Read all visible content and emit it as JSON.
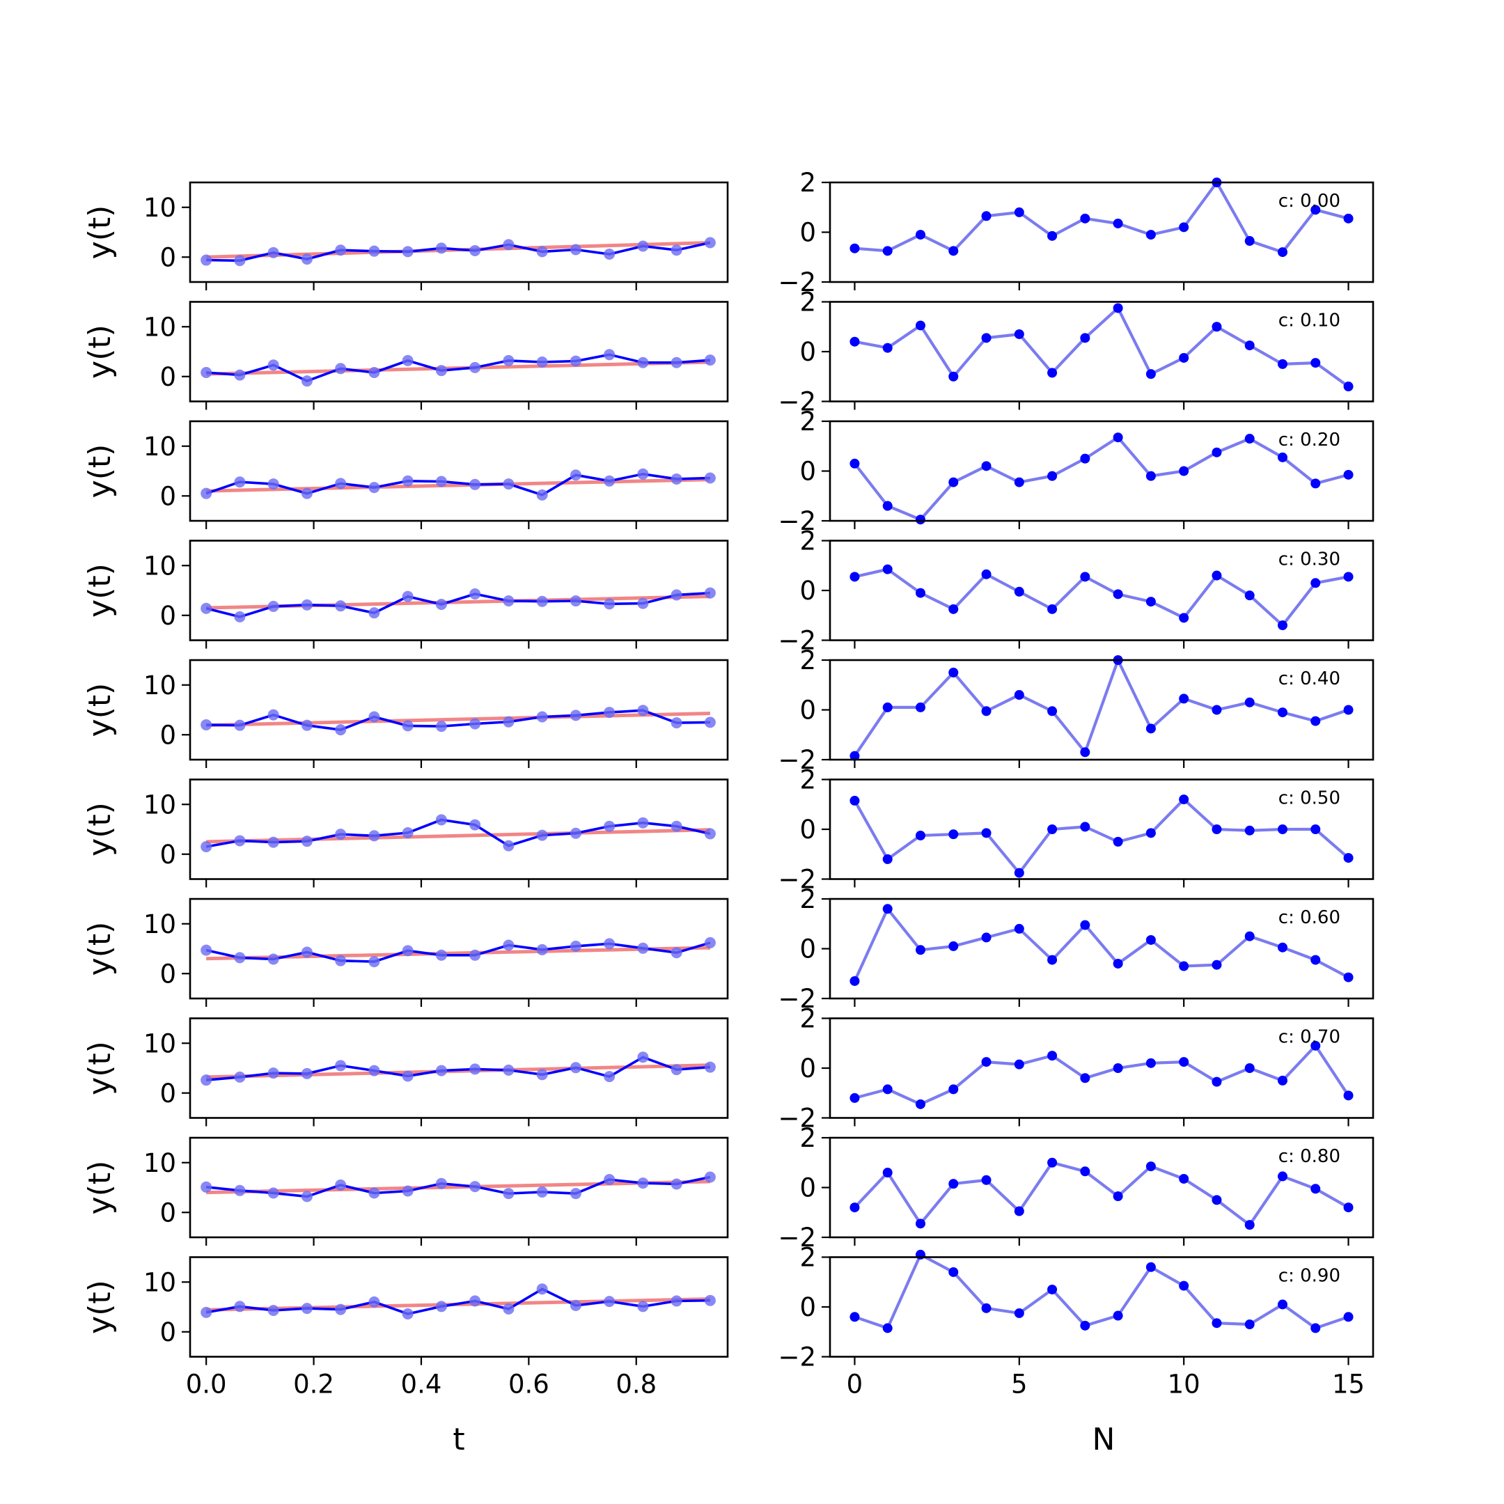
{
  "chart_data": [
    {
      "type": "line",
      "panel": "left",
      "xlabel": "t",
      "ylabel": "y(t)",
      "xlim": [
        -0.03,
        0.97
      ],
      "ylim": [
        -5,
        15
      ],
      "x_ticks": [
        0.0,
        0.2,
        0.4,
        0.6,
        0.8
      ],
      "x_tick_labels": [
        "0.0",
        "0.2",
        "0.4",
        "0.6",
        "0.8"
      ],
      "y_ticks": [
        0,
        10
      ],
      "y_tick_labels": [
        "0",
        "10"
      ],
      "x": [
        0.0,
        0.0625,
        0.125,
        0.1875,
        0.25,
        0.3125,
        0.375,
        0.4375,
        0.5,
        0.5625,
        0.625,
        0.6875,
        0.75,
        0.8125,
        0.875,
        0.9375
      ],
      "colors": {
        "data": "#0000ff",
        "fit": "#f08080"
      },
      "rows": [
        {
          "values": [
            -0.6,
            -0.7,
            0.9,
            -0.4,
            1.4,
            1.2,
            1.1,
            1.8,
            1.3,
            2.5,
            1.1,
            1.5,
            0.6,
            2.2,
            1.4,
            2.9
          ],
          "fit": [
            0.0,
            2.9
          ]
        },
        {
          "values": [
            0.8,
            0.3,
            2.3,
            -0.9,
            1.6,
            0.8,
            3.2,
            1.2,
            1.8,
            3.2,
            2.9,
            3.1,
            4.4,
            2.8,
            2.8,
            3.3
          ],
          "fit": [
            0.5,
            2.9
          ]
        },
        {
          "values": [
            0.5,
            2.8,
            2.4,
            0.5,
            2.5,
            1.7,
            3.0,
            2.9,
            2.3,
            2.4,
            0.2,
            4.2,
            3.0,
            4.4,
            3.4,
            3.6
          ],
          "fit": [
            1.0,
            3.3
          ]
        },
        {
          "values": [
            1.4,
            -0.3,
            1.8,
            2.1,
            1.9,
            0.5,
            3.8,
            2.2,
            4.3,
            2.9,
            2.8,
            2.9,
            2.3,
            2.4,
            4.1,
            4.5
          ],
          "fit": [
            1.5,
            3.8
          ]
        },
        {
          "values": [
            2.0,
            1.9,
            4.0,
            1.9,
            1.0,
            3.6,
            1.8,
            1.7,
            2.2,
            2.6,
            3.6,
            3.9,
            4.5,
            4.9,
            2.4,
            2.5
          ],
          "fit": [
            1.9,
            4.3
          ]
        },
        {
          "values": [
            1.5,
            2.7,
            2.4,
            2.6,
            4.0,
            3.7,
            4.3,
            6.9,
            5.9,
            1.7,
            3.8,
            4.2,
            5.6,
            6.3,
            5.6,
            4.1
          ],
          "fit": [
            2.5,
            4.9
          ]
        },
        {
          "values": [
            4.7,
            3.2,
            2.9,
            4.3,
            2.6,
            2.4,
            4.6,
            3.7,
            3.7,
            5.7,
            4.8,
            5.5,
            6.0,
            5.1,
            4.2,
            6.2
          ],
          "fit": [
            3.0,
            5.2
          ]
        },
        {
          "values": [
            2.6,
            3.2,
            4.0,
            3.9,
            5.5,
            4.5,
            3.4,
            4.5,
            4.8,
            4.6,
            3.7,
            5.1,
            3.3,
            7.2,
            4.7,
            5.2
          ],
          "fit": [
            3.2,
            5.6
          ]
        },
        {
          "values": [
            5.1,
            4.4,
            3.9,
            3.2,
            5.5,
            3.9,
            4.3,
            5.8,
            5.2,
            3.8,
            4.1,
            3.8,
            6.6,
            5.9,
            5.7,
            7.1
          ],
          "fit": [
            4.0,
            6.2
          ]
        },
        {
          "values": [
            3.9,
            5.1,
            4.3,
            4.7,
            4.5,
            6.0,
            3.6,
            5.1,
            6.2,
            4.6,
            8.6,
            5.3,
            6.1,
            5.1,
            6.2,
            6.3
          ],
          "fit": [
            4.4,
            6.6
          ]
        }
      ]
    },
    {
      "type": "line",
      "panel": "right",
      "xlabel": "N",
      "ylabel": "",
      "xlim": [
        -0.75,
        15.75
      ],
      "ylim": [
        -2,
        2
      ],
      "x_ticks": [
        0,
        5,
        10,
        15
      ],
      "x_tick_labels": [
        "0",
        "5",
        "10",
        "15"
      ],
      "y_ticks": [
        -2,
        0,
        2
      ],
      "y_tick_labels": [
        "−2",
        "0",
        "2"
      ],
      "x": [
        0,
        1,
        2,
        3,
        4,
        5,
        6,
        7,
        8,
        9,
        10,
        11,
        12,
        13,
        14,
        15
      ],
      "colors": {
        "line": "#7b7bf0",
        "points": "#0000ff"
      },
      "rows": [
        {
          "label": "c: 0.00",
          "values": [
            -0.65,
            -0.75,
            -0.1,
            -0.75,
            0.65,
            0.8,
            -0.15,
            0.55,
            0.35,
            -0.1,
            0.2,
            2.0,
            -0.35,
            -0.8,
            0.9,
            0.55
          ]
        },
        {
          "label": "c: 0.10",
          "values": [
            0.4,
            0.15,
            1.05,
            -1.0,
            0.55,
            0.7,
            -0.85,
            0.55,
            1.75,
            -0.9,
            -0.25,
            1.0,
            0.25,
            -0.5,
            -0.45,
            -1.4
          ]
        },
        {
          "label": "c: 0.20",
          "values": [
            0.3,
            -1.4,
            -1.95,
            -0.45,
            0.2,
            -0.45,
            -0.2,
            0.5,
            1.35,
            -0.2,
            0.0,
            0.75,
            1.3,
            0.55,
            -0.5,
            -0.15
          ]
        },
        {
          "label": "c: 0.30",
          "values": [
            0.55,
            0.85,
            -0.1,
            -0.75,
            0.65,
            -0.05,
            -0.75,
            0.55,
            -0.15,
            -0.45,
            -1.1,
            0.6,
            -0.2,
            -1.4,
            0.3,
            0.55
          ]
        },
        {
          "label": "c: 0.40",
          "values": [
            -1.85,
            0.1,
            0.1,
            1.5,
            -0.05,
            0.6,
            -0.05,
            -1.7,
            2.0,
            -0.75,
            0.45,
            0.0,
            0.3,
            -0.1,
            -0.45,
            0.0
          ]
        },
        {
          "label": "c: 0.50",
          "values": [
            1.15,
            -1.2,
            -0.25,
            -0.2,
            -0.15,
            -1.75,
            0.0,
            0.1,
            -0.5,
            -0.15,
            1.2,
            0.0,
            -0.05,
            0.0,
            0.0,
            -1.15
          ]
        },
        {
          "label": "c: 0.60",
          "values": [
            -1.3,
            1.6,
            -0.05,
            0.1,
            0.45,
            0.8,
            -0.45,
            0.95,
            -0.6,
            0.35,
            -0.7,
            -0.65,
            0.5,
            0.05,
            -0.45,
            -1.15
          ]
        },
        {
          "label": "c: 0.70",
          "values": [
            -1.2,
            -0.85,
            -1.45,
            -0.85,
            0.25,
            0.15,
            0.5,
            -0.4,
            0.0,
            0.2,
            0.25,
            -0.55,
            0.0,
            -0.5,
            0.9,
            -1.1
          ]
        },
        {
          "label": "c: 0.80",
          "values": [
            -0.8,
            0.6,
            -1.45,
            0.15,
            0.3,
            -0.95,
            1.0,
            0.65,
            -0.35,
            0.85,
            0.35,
            -0.5,
            -1.5,
            0.45,
            -0.05,
            -0.8
          ]
        },
        {
          "label": "c: 0.90",
          "values": [
            -0.4,
            -0.85,
            2.1,
            1.4,
            -0.05,
            -0.25,
            0.7,
            -0.75,
            -0.35,
            1.6,
            0.85,
            -0.65,
            -0.7,
            0.1,
            -0.85,
            -0.4
          ]
        }
      ]
    }
  ]
}
